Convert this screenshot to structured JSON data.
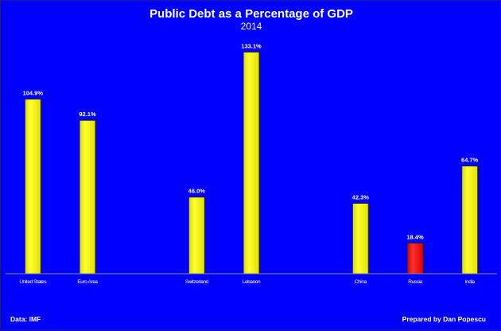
{
  "chart_data": {
    "type": "bar",
    "title": "Public Debt as a Percentage of GDP",
    "subtitle": "2014",
    "categories": [
      "United States",
      "Euro Area",
      "",
      "Switzerland",
      "Lebanon",
      "",
      "China",
      "Russia",
      "India"
    ],
    "values": [
      104.9,
      92.1,
      null,
      46.0,
      133.1,
      null,
      42.3,
      18.4,
      64.7
    ],
    "data_labels": [
      "104.9%",
      "92.1%",
      "",
      "46.0%",
      "133.1%",
      "",
      "42.3%",
      "18.4%",
      "64.7%"
    ],
    "bar_colors": [
      "#ffff00",
      "#ffff00",
      "",
      "#ffff00",
      "#ffff00",
      "",
      "#ffff00",
      "#ff0000",
      "#ffff00"
    ],
    "xlabel": "",
    "ylabel": "",
    "ylim": [
      0,
      140
    ],
    "grid": false,
    "legend": "none",
    "background": "#0000ff",
    "source": "Data: IMF",
    "credit": "Prepared by Dan Popescu"
  }
}
